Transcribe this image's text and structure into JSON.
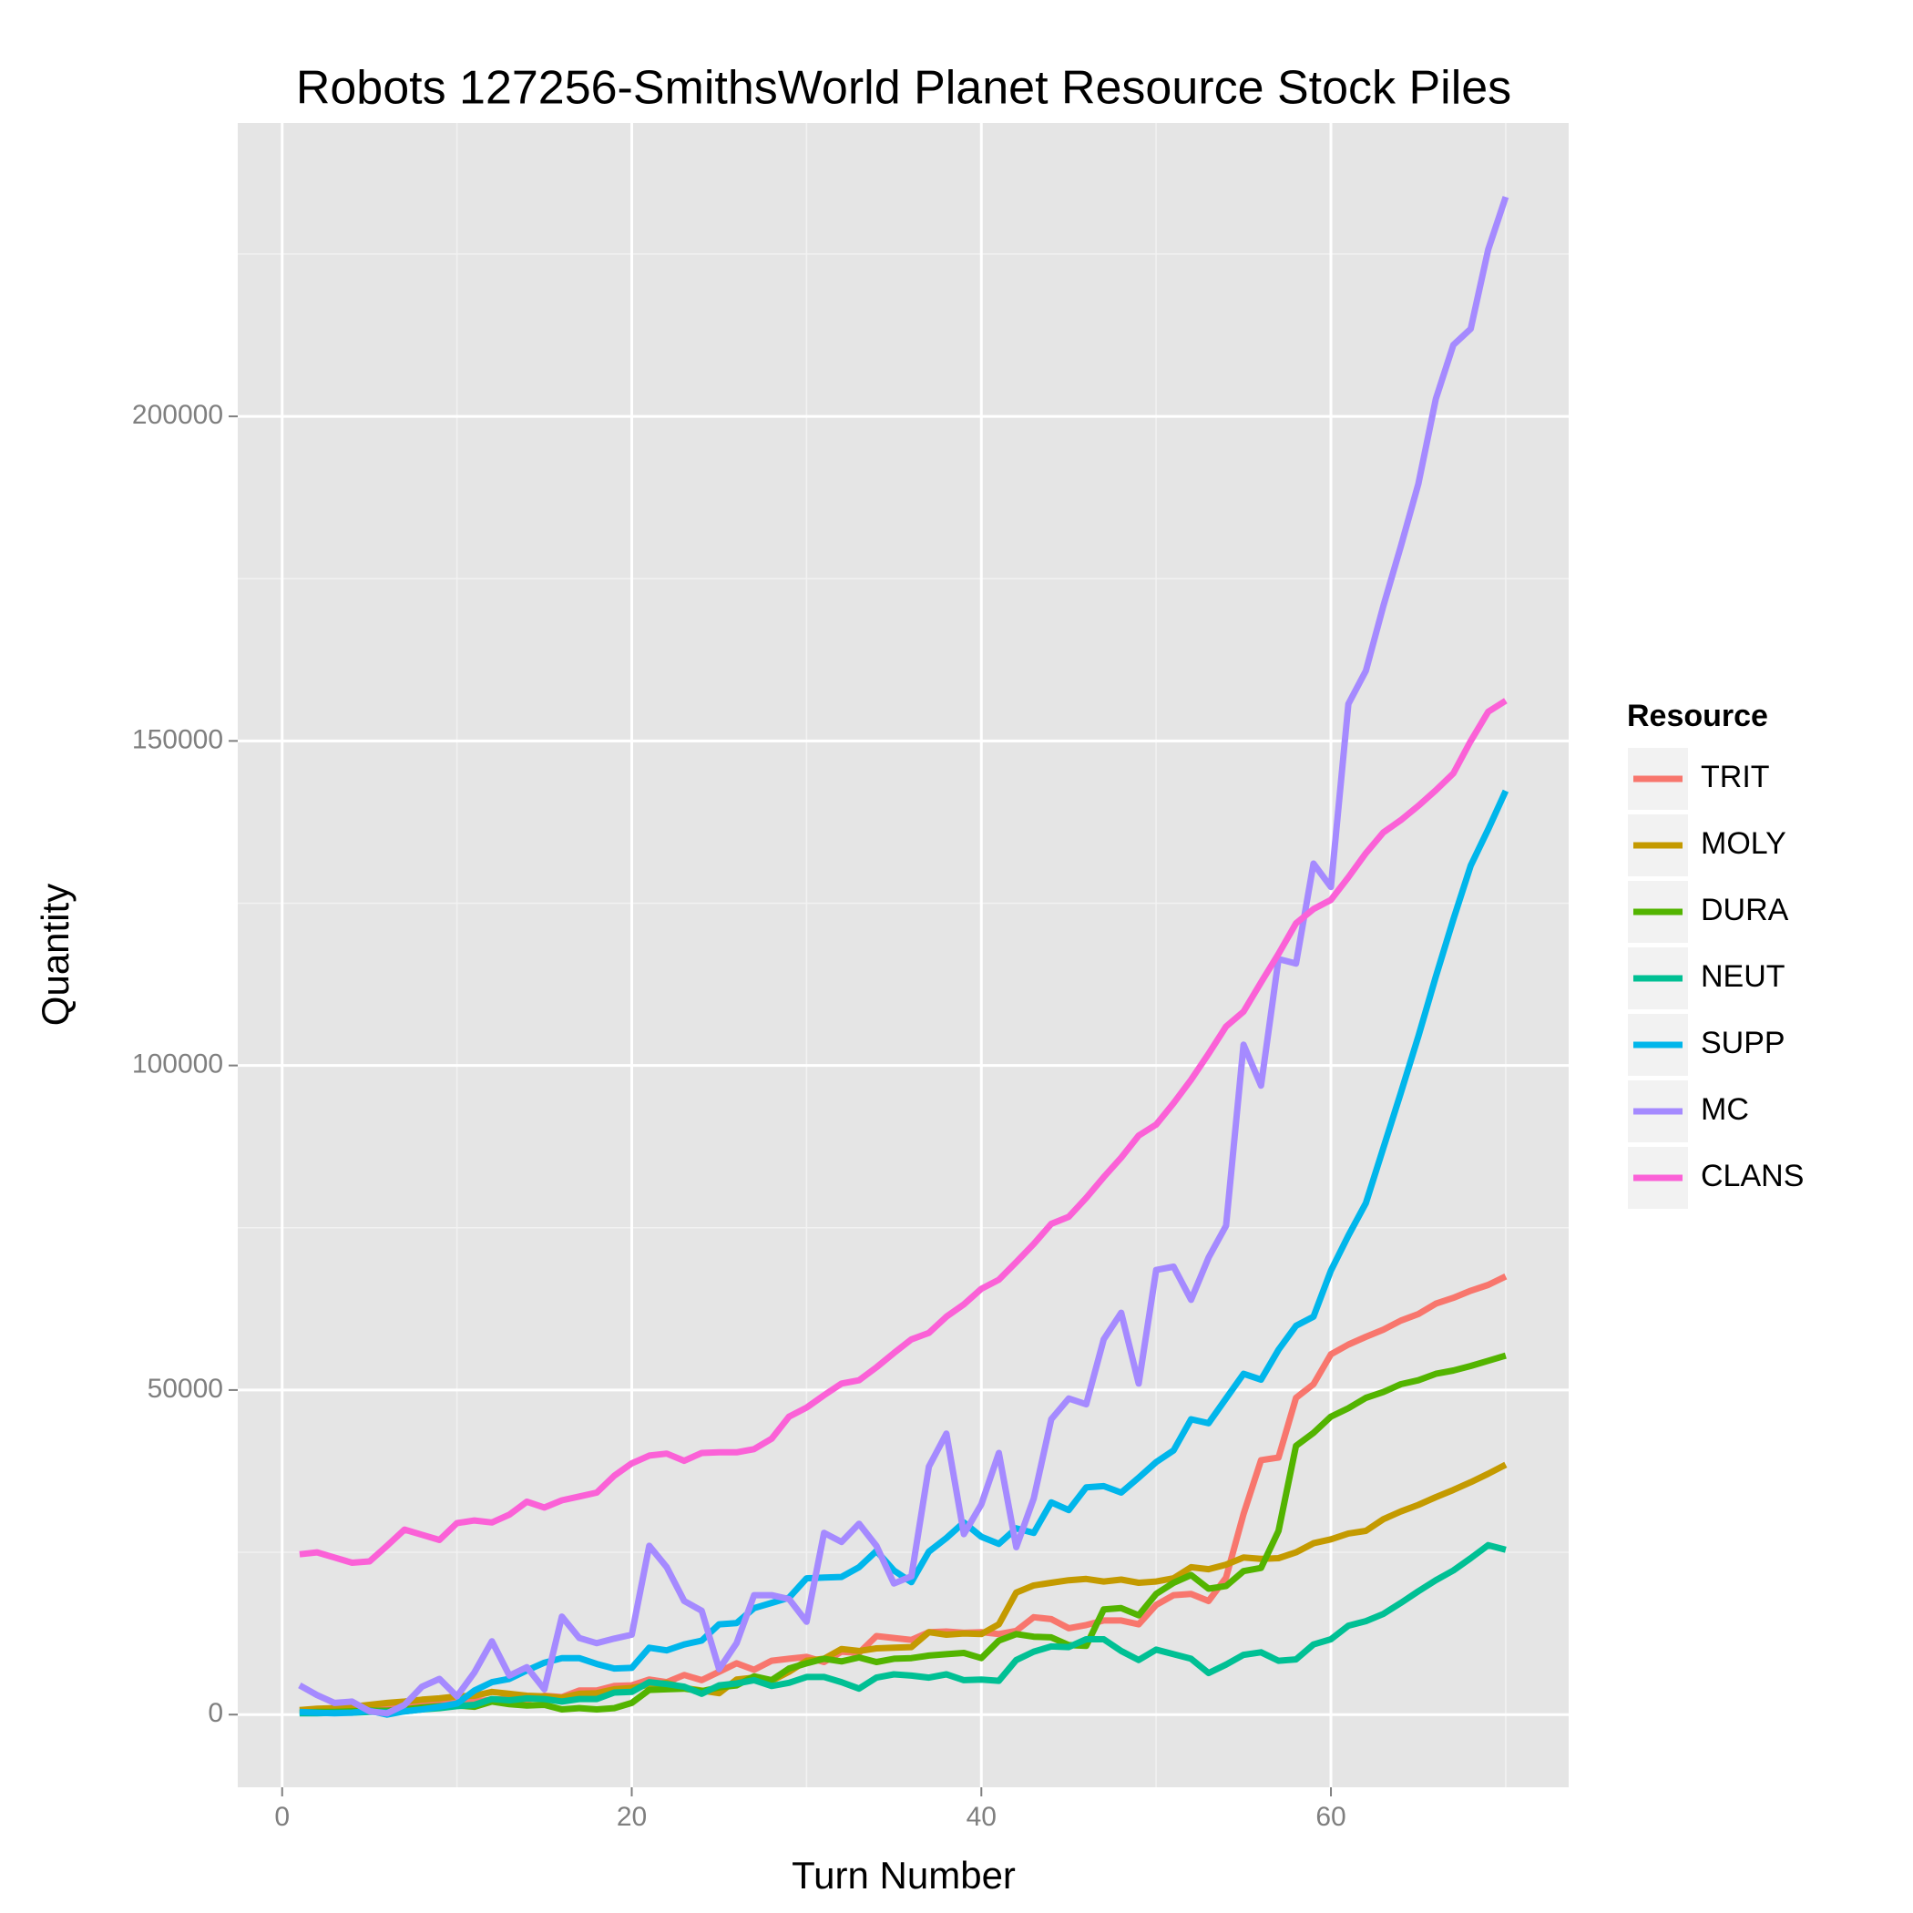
{
  "chart_data": {
    "type": "line",
    "title": "Robots 127256-SmithsWorld Planet Resource Stock Piles",
    "x_label": "Turn Number",
    "y_label": "Quantity",
    "legend_title": "Resource",
    "legend": "right",
    "grid": true,
    "x": [
      1,
      2,
      3,
      4,
      5,
      6,
      7,
      8,
      9,
      10,
      11,
      12,
      13,
      14,
      15,
      16,
      17,
      18,
      19,
      20,
      21,
      22,
      23,
      24,
      25,
      26,
      27,
      28,
      29,
      30,
      31,
      32,
      33,
      34,
      35,
      36,
      37,
      38,
      39,
      40,
      41,
      42,
      43,
      44,
      45,
      46,
      47,
      48,
      49,
      50,
      51,
      52,
      53,
      54,
      55,
      56,
      57,
      58,
      59,
      60,
      61,
      62,
      63,
      64,
      65,
      66,
      67,
      68,
      69,
      70
    ],
    "xlim": [
      -2.54,
      73.6
    ],
    "xticks": [
      0,
      20,
      40,
      60
    ],
    "ylim": [
      -11200,
      245200
    ],
    "yticks": [
      0,
      50000,
      100000,
      150000,
      200000
    ],
    "series": [
      {
        "name": "TRIT",
        "color": "#F8766D",
        "values": [
          600,
          600,
          700,
          800,
          1000,
          1100,
          1300,
          1400,
          1600,
          1800,
          2000,
          2300,
          2400,
          2300,
          2900,
          2700,
          3700,
          3700,
          4400,
          4500,
          5400,
          5000,
          6100,
          5300,
          6600,
          7900,
          6900,
          8300,
          8600,
          8900,
          8100,
          9700,
          9500,
          12100,
          11800,
          11500,
          12700,
          12800,
          12600,
          12700,
          12400,
          12900,
          15000,
          14700,
          13300,
          13800,
          14500,
          14500,
          13900,
          16900,
          18400,
          18600,
          17500,
          21100,
          30900,
          39200,
          39600,
          48800,
          50900,
          55500,
          57000,
          58200,
          59300,
          60700,
          61700,
          63300,
          64200,
          65300,
          66200,
          67500
        ]
      },
      {
        "name": "MOLY",
        "color": "#C49A00",
        "values": [
          700,
          900,
          1000,
          1200,
          1500,
          1800,
          2000,
          2300,
          2500,
          2800,
          2900,
          3500,
          3200,
          2900,
          2800,
          2600,
          3200,
          3300,
          3900,
          4100,
          4600,
          4900,
          4100,
          3700,
          3300,
          5400,
          5700,
          5200,
          6600,
          8300,
          8600,
          10100,
          9800,
          10200,
          10300,
          10400,
          12700,
          12300,
          12500,
          12400,
          13900,
          18800,
          19900,
          20300,
          20700,
          20900,
          20500,
          20800,
          20300,
          20500,
          21000,
          22700,
          22400,
          23100,
          24200,
          24000,
          24100,
          25000,
          26400,
          27000,
          27900,
          28300,
          30100,
          31300,
          32300,
          33500,
          34600,
          35800,
          37100,
          38500
        ]
      },
      {
        "name": "DURA",
        "color": "#53B400",
        "values": [
          300,
          400,
          400,
          500,
          600,
          600,
          800,
          1100,
          1300,
          1400,
          1200,
          2000,
          1600,
          1400,
          1500,
          800,
          1000,
          800,
          1000,
          1800,
          3800,
          3900,
          4000,
          3600,
          4200,
          4500,
          5900,
          5300,
          7100,
          7900,
          8600,
          8200,
          8800,
          8100,
          8600,
          8700,
          9100,
          9300,
          9500,
          8700,
          11400,
          12400,
          12000,
          11900,
          10700,
          10600,
          16200,
          16400,
          15300,
          18600,
          20300,
          21500,
          19400,
          19800,
          22100,
          22600,
          28300,
          41400,
          43400,
          45900,
          47200,
          48800,
          49700,
          50900,
          51500,
          52500,
          53000,
          53700,
          54500,
          55300
        ]
      },
      {
        "name": "NEUT",
        "color": "#00C094",
        "values": [
          200,
          200,
          300,
          300,
          400,
          400,
          500,
          800,
          1000,
          1300,
          1500,
          2400,
          2200,
          2500,
          2400,
          2000,
          2400,
          2400,
          3400,
          3500,
          5000,
          4700,
          4300,
          3200,
          4500,
          4800,
          5300,
          4400,
          4900,
          5800,
          5800,
          5000,
          4000,
          5700,
          6200,
          6000,
          5700,
          6200,
          5300,
          5400,
          5200,
          8400,
          9700,
          10500,
          10400,
          11600,
          11600,
          9800,
          8400,
          10000,
          9300,
          8600,
          6400,
          7700,
          9200,
          9600,
          8300,
          8500,
          10800,
          11600,
          13700,
          14400,
          15500,
          17200,
          19000,
          20700,
          22200,
          24100,
          26100,
          25400
        ]
      },
      {
        "name": "SUPP",
        "color": "#00B6EB",
        "values": [
          400,
          300,
          200,
          300,
          600,
          0,
          500,
          800,
          1200,
          1700,
          3700,
          5000,
          5500,
          6800,
          8000,
          8700,
          8700,
          7800,
          7100,
          7200,
          10300,
          9900,
          10800,
          11400,
          13900,
          14100,
          16400,
          17200,
          18000,
          21000,
          21100,
          21200,
          22700,
          25200,
          22200,
          20400,
          25100,
          27200,
          29600,
          27400,
          26300,
          28700,
          28000,
          32700,
          31500,
          35000,
          35200,
          34200,
          36500,
          38900,
          40700,
          45500,
          44900,
          48700,
          52500,
          51600,
          56200,
          59900,
          61300,
          68400,
          73800,
          78800,
          87300,
          95800,
          104500,
          113700,
          122500,
          130800,
          136400,
          142300
        ]
      },
      {
        "name": "MC",
        "color": "#A58AFF",
        "values": [
          4500,
          3000,
          1800,
          2000,
          500,
          200,
          1500,
          4300,
          5500,
          2800,
          6500,
          11300,
          6000,
          7300,
          3900,
          15100,
          11800,
          11000,
          11700,
          12300,
          26000,
          22700,
          17500,
          16000,
          7000,
          11000,
          18400,
          18400,
          17800,
          14300,
          28000,
          26600,
          29400,
          26000,
          20200,
          21300,
          38200,
          43300,
          27800,
          32400,
          40300,
          25800,
          33300,
          45500,
          48700,
          47800,
          57800,
          61900,
          51000,
          68500,
          69000,
          63900,
          70400,
          75300,
          103200,
          96900,
          116400,
          115700,
          131100,
          127500,
          155700,
          160800,
          170800,
          180000,
          189600,
          202700,
          211000,
          213500,
          225700,
          233800
        ]
      },
      {
        "name": "CLANS",
        "color": "#FB61D7",
        "values": [
          24700,
          25000,
          24200,
          23400,
          23600,
          26000,
          28500,
          27700,
          26900,
          29500,
          29900,
          29600,
          30800,
          32800,
          31900,
          33000,
          33600,
          34200,
          36800,
          38700,
          39900,
          40200,
          39100,
          40300,
          40400,
          40400,
          40900,
          42500,
          45900,
          47300,
          49200,
          51000,
          51500,
          53500,
          55700,
          57800,
          58800,
          61300,
          63200,
          65600,
          67000,
          69700,
          72500,
          75600,
          76700,
          79600,
          82800,
          85800,
          89200,
          90900,
          94200,
          97800,
          101800,
          106000,
          108300,
          112800,
          117200,
          121900,
          124100,
          125500,
          129000,
          132700,
          135900,
          137800,
          140000,
          142400,
          145000,
          150000,
          154500,
          156200
        ]
      }
    ]
  }
}
